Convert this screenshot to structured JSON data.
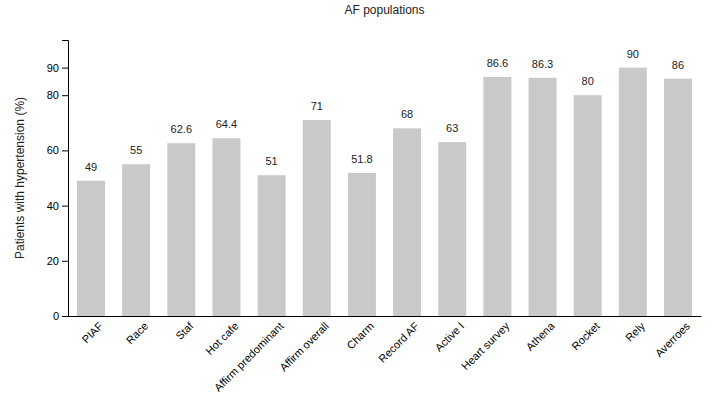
{
  "chart_data": {
    "type": "bar",
    "title": "AF populations",
    "y_label": "Patients with hypertension (%)",
    "categories": [
      "PIAF",
      "Race",
      "Staf",
      "Hot cafe",
      "Affirm predominant",
      "Affirm overall",
      "Charm",
      "Record AF",
      "Active I",
      "Heart survey",
      "Athena",
      "Rocket",
      "Rely",
      "Averroes"
    ],
    "values": [
      49,
      55,
      62.6,
      64.4,
      51,
      71,
      51.8,
      68,
      63,
      86.6,
      86.3,
      80,
      90,
      86
    ],
    "color": "#c9c9c9",
    "ylim": [
      0,
      100
    ],
    "yticks": [
      0,
      20,
      40,
      60,
      80,
      90
    ],
    "grid": false,
    "data_labels": true
  }
}
